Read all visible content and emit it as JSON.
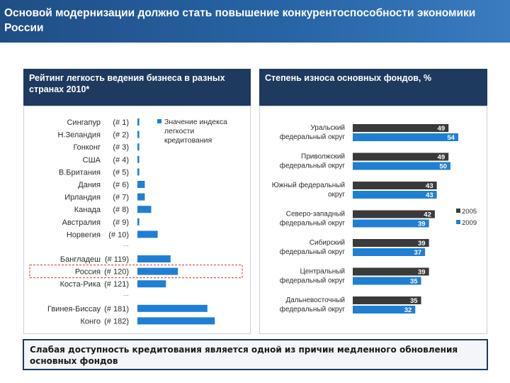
{
  "header": {
    "title": "Основой модернизации должно стать повышение конкурентоспособности экономики России"
  },
  "chart_data": [
    {
      "type": "bar",
      "title": "Рейтинг легкость ведения бизнеса в разных странах 2010*",
      "orientation": "horizontal",
      "legend": "top-right",
      "series": [
        {
          "name": "Значение индекса легкости кредитования",
          "color": "#1f7fd3"
        }
      ],
      "rows": [
        {
          "country": "Сингапур",
          "rank": "(# 1)",
          "value": 1,
          "gap": false
        },
        {
          "country": "Н.Зеландия",
          "rank": "(# 2)",
          "value": 1,
          "gap": false
        },
        {
          "country": "Гонконг",
          "rank": "(# 3)",
          "value": 1,
          "gap": false
        },
        {
          "country": "США",
          "rank": "(# 4)",
          "value": 1,
          "gap": false
        },
        {
          "country": "В.Британия",
          "rank": "(# 5)",
          "value": 1,
          "gap": false
        },
        {
          "country": "Дания",
          "rank": "(# 6)",
          "value": 4,
          "gap": false
        },
        {
          "country": "Ирландия",
          "rank": "(# 7)",
          "value": 4,
          "gap": false
        },
        {
          "country": "Канада",
          "rank": "(# 8)",
          "value": 7.5,
          "gap": false
        },
        {
          "country": "Австралия",
          "rank": "(# 9)",
          "value": 1,
          "gap": false
        },
        {
          "country": "Норвегия",
          "rank": "(# 10)",
          "value": 11,
          "gap": false
        },
        {
          "country": "Бангладеш",
          "rank": "(# 119)",
          "value": 18,
          "gap": true
        },
        {
          "country": "Россия",
          "rank": "(# 120)",
          "value": 22,
          "gap": false,
          "highlight": true
        },
        {
          "country": "Коста-Рика",
          "rank": "(# 121)",
          "value": 15.5,
          "gap": false
        },
        {
          "country": "Гвинея-Биссау",
          "rank": "(# 181)",
          "value": 38,
          "gap": true
        },
        {
          "country": "Конго",
          "rank": "(# 182)",
          "value": 42,
          "gap": false
        }
      ],
      "gap_marker": "...",
      "xlim": [
        0,
        50
      ],
      "grid": false
    },
    {
      "type": "bar",
      "title": "Степень износа основных фондов, %",
      "orientation": "horizontal",
      "legend": "right",
      "categories": [
        "Уральский федеральный округ",
        "Приволжский федеральный округ",
        "Южный федеральный округ",
        "Северо-западный федеральный округ",
        "Сибирский федеральный округ",
        "Центральный федеральный округ",
        "Дальневосточный федеральный округ"
      ],
      "series": [
        {
          "name": "2005",
          "color": "#3a3a3a",
          "values": [
            49,
            49,
            43,
            42,
            39,
            39,
            35
          ]
        },
        {
          "name": "2009",
          "color": "#1f7fd3",
          "values": [
            54,
            50,
            43,
            39,
            37,
            35,
            32
          ]
        }
      ],
      "xlim": [
        0,
        58
      ],
      "grid": false
    }
  ],
  "conclusion": {
    "text": "Слабая доступность кредитования является одной из причин медленного обновления основных фондов"
  }
}
